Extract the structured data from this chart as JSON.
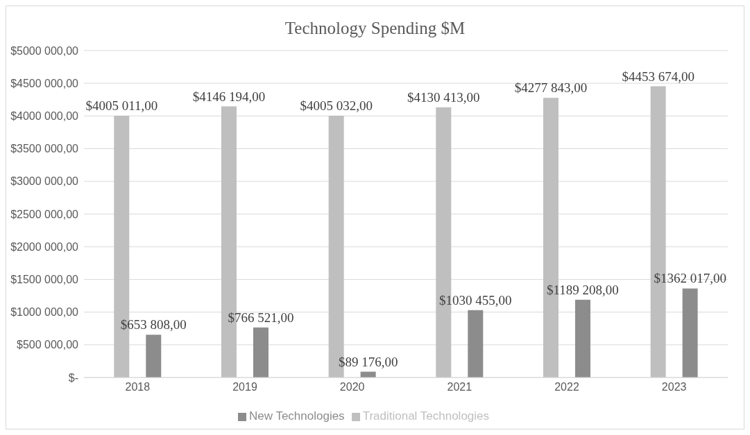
{
  "chart_data": {
    "type": "bar",
    "title": "Technology Spending $M",
    "categories": [
      "2018",
      "2019",
      "2020",
      "2021",
      "2022",
      "2023"
    ],
    "series": [
      {
        "name": "Traditional Technologies",
        "color": "#bfbfbf",
        "values": [
          4005011,
          4146194,
          4005032,
          4130413,
          4277843,
          4453674
        ],
        "value_labels": [
          "$4005 011,00",
          "$4146 194,00",
          "$4005 032,00",
          "$4130 413,00",
          "$4277 843,00",
          "$4453 674,00"
        ]
      },
      {
        "name": "New Technologies",
        "color": "#8c8c8c",
        "values": [
          653808,
          766521,
          89176,
          1030455,
          1189208,
          1362017
        ],
        "value_labels": [
          "$653 808,00",
          "$766 521,00",
          "$89 176,00",
          "$1030 455,00",
          "$1189 208,00",
          "$1362 017,00"
        ]
      }
    ],
    "ylim": [
      0,
      5000000
    ],
    "yticks": [
      {
        "value": 0,
        "label": "$-"
      },
      {
        "value": 500000,
        "label": "$500 000,00"
      },
      {
        "value": 1000000,
        "label": "$1000 000,00"
      },
      {
        "value": 1500000,
        "label": "$1500 000,00"
      },
      {
        "value": 2000000,
        "label": "$2000 000,00"
      },
      {
        "value": 2500000,
        "label": "$2500 000,00"
      },
      {
        "value": 3000000,
        "label": "$3000 000,00"
      },
      {
        "value": 3500000,
        "label": "$3500 000,00"
      },
      {
        "value": 4000000,
        "label": "$4000 000,00"
      },
      {
        "value": 4500000,
        "label": "$4500 000,00"
      },
      {
        "value": 5000000,
        "label": "$5000 000,00"
      }
    ],
    "grid": "y",
    "legend": "bottom"
  }
}
